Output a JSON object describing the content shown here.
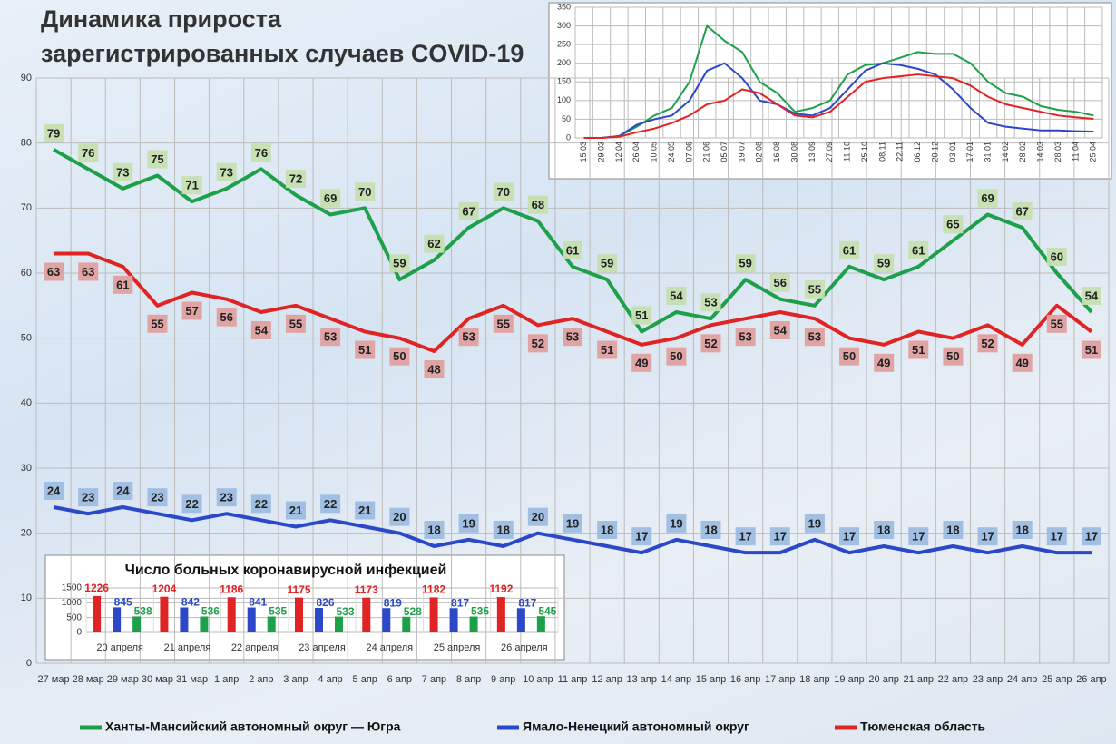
{
  "chart_data": [
    {
      "type": "line",
      "title": "Динамика прироста\nзарегистрированных случаев COVID-19",
      "categories": [
        "27 мар",
        "28 мар",
        "29 мар",
        "30 мар",
        "31 мар",
        "1 апр",
        "2 апр",
        "3 апр",
        "4 апр",
        "5 апр",
        "6 апр",
        "7 апр",
        "8 апр",
        "9 апр",
        "10 апр",
        "11 апр",
        "12 апр",
        "13 апр",
        "14 апр",
        "15 апр",
        "16 апр",
        "17 апр",
        "18 апр",
        "19 апр",
        "20 апр",
        "21 апр",
        "22 апр",
        "23 апр",
        "24 апр",
        "25 апр",
        "26 апр"
      ],
      "series": [
        {
          "name": "Ханты-Мансийский автономный округ — Югра",
          "color": "#1ea04a",
          "label_color": "#c5dfb0",
          "values": [
            79,
            76,
            73,
            75,
            71,
            73,
            76,
            72,
            69,
            70,
            59,
            62,
            67,
            70,
            68,
            61,
            59,
            51,
            54,
            53,
            59,
            56,
            55,
            61,
            59,
            61,
            65,
            69,
            67,
            60,
            54
          ]
        },
        {
          "name": "Ямало-Ненецкий автономный округ",
          "color": "#2a48c8",
          "label_color": "#9dbde0",
          "values": [
            24,
            23,
            24,
            23,
            22,
            23,
            22,
            21,
            22,
            21,
            20,
            18,
            19,
            18,
            20,
            19,
            18,
            17,
            19,
            18,
            17,
            17,
            19,
            17,
            18,
            17,
            18,
            17,
            18,
            17,
            17
          ]
        },
        {
          "name": "Тюменская область",
          "color": "#e02424",
          "label_color": "#e0a0a0",
          "values": [
            63,
            63,
            61,
            55,
            57,
            56,
            54,
            55,
            53,
            51,
            50,
            48,
            53,
            55,
            52,
            53,
            51,
            49,
            50,
            52,
            53,
            54,
            53,
            50,
            49,
            51,
            50,
            52,
            49,
            55,
            51
          ]
        }
      ],
      "ylim": [
        0,
        90
      ],
      "yticks": [
        0,
        10,
        20,
        30,
        40,
        50,
        60,
        70,
        80,
        90
      ],
      "grid": true,
      "data_labels": true,
      "legend": "bottom"
    },
    {
      "type": "line",
      "categories": [
        "15.03",
        "29.03",
        "12.04",
        "26.04",
        "10.05",
        "24.05",
        "07.06",
        "21.06",
        "05.07",
        "19.07",
        "02.08",
        "16.08",
        "30.08",
        "13.09",
        "27.09",
        "11.10",
        "25.10",
        "08.11",
        "22.11",
        "06.12",
        "20.12",
        "03.01",
        "17.01",
        "31.01",
        "14.02",
        "28.02",
        "14.03",
        "28.03",
        "11.04",
        "25.04"
      ],
      "series": [
        {
          "color": "#1ea04a",
          "values": [
            0,
            0,
            5,
            30,
            60,
            80,
            150,
            300,
            260,
            230,
            150,
            120,
            70,
            80,
            100,
            170,
            195,
            200,
            215,
            230,
            225,
            225,
            200,
            150,
            120,
            110,
            85,
            75,
            70,
            60
          ]
        },
        {
          "color": "#2a48c8",
          "values": [
            0,
            0,
            5,
            35,
            50,
            60,
            100,
            180,
            200,
            160,
            100,
            90,
            65,
            60,
            80,
            130,
            180,
            200,
            195,
            185,
            170,
            130,
            80,
            40,
            30,
            25,
            20,
            20,
            18,
            17
          ]
        },
        {
          "color": "#e02424",
          "values": [
            0,
            0,
            3,
            15,
            25,
            40,
            60,
            90,
            100,
            130,
            120,
            90,
            60,
            55,
            70,
            110,
            150,
            160,
            165,
            170,
            165,
            160,
            140,
            110,
            90,
            80,
            70,
            60,
            55,
            51
          ]
        }
      ],
      "ylim": [
        0,
        350
      ],
      "yticks": [
        0,
        50,
        100,
        150,
        200,
        250,
        300,
        350
      ],
      "grid": true
    },
    {
      "type": "bar",
      "title": "Число больных коронавирусной  инфекцией",
      "categories": [
        "20 апреля",
        "21 апреля",
        "22 апреля",
        "23 апреля",
        "24 апреля",
        "25 апреля",
        "26 апреля"
      ],
      "series": [
        {
          "color": "#e02424",
          "values": [
            1226,
            1204,
            1186,
            1175,
            1173,
            1182,
            1192
          ]
        },
        {
          "color": "#2a48c8",
          "values": [
            845,
            842,
            841,
            826,
            819,
            817,
            817
          ]
        },
        {
          "color": "#1ea04a",
          "values": [
            538,
            536,
            535,
            533,
            528,
            535,
            545
          ]
        }
      ],
      "ylim": [
        0,
        1500
      ],
      "yticks": [
        0,
        500,
        1000,
        1500
      ],
      "grid": true,
      "data_labels": true
    }
  ]
}
